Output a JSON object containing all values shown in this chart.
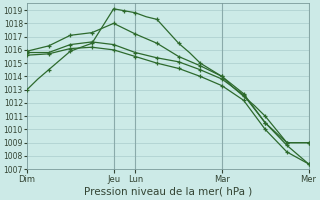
{
  "background_color": "#cceae7",
  "grid_color": "#aacccc",
  "line_color": "#2d6a2d",
  "marker_color": "#2d6a2d",
  "ylim": [
    1007,
    1019.5
  ],
  "yticks": [
    1007,
    1008,
    1009,
    1010,
    1011,
    1012,
    1013,
    1014,
    1015,
    1016,
    1017,
    1018,
    1019
  ],
  "xlabel": "Pression niveau de la mer( hPa )",
  "xlabel_fontsize": 7.5,
  "ytick_fontsize": 5.5,
  "xtick_fontsize": 6.0,
  "xtick_labels": [
    "Dim",
    "Jeu",
    "Lun",
    "Mar",
    "Mer"
  ],
  "xtick_positions": [
    0,
    4,
    5,
    9,
    13
  ],
  "vline_positions": [
    4,
    5,
    9,
    13
  ],
  "series": [
    {
      "x": [
        0,
        0.5,
        1,
        1.5,
        2,
        2.5,
        3,
        3.5,
        4,
        4.5,
        5,
        5.5,
        6,
        6.5,
        7,
        7.5,
        8,
        8.5,
        9,
        9.5,
        10,
        10.5,
        11,
        11.5,
        12,
        12.5,
        13
      ],
      "y": [
        1013.0,
        1013.8,
        1014.5,
        1015.2,
        1015.9,
        1016.2,
        1016.5,
        1017.8,
        1019.1,
        1018.95,
        1018.8,
        1018.5,
        1018.3,
        1017.4,
        1016.5,
        1015.8,
        1015.0,
        1014.5,
        1014.0,
        1013.2,
        1012.5,
        1011.8,
        1011.0,
        1010.0,
        1009.0,
        1009.0,
        1009.0
      ]
    },
    {
      "x": [
        0,
        0.5,
        1,
        1.5,
        2,
        2.5,
        3,
        3.5,
        4,
        4.5,
        5,
        5.5,
        6,
        6.5,
        7,
        7.5,
        8,
        8.5,
        9,
        9.5,
        10,
        10.5,
        11,
        11.5,
        12,
        12.5,
        13
      ],
      "y": [
        1015.9,
        1016.1,
        1016.3,
        1016.7,
        1017.1,
        1017.2,
        1017.3,
        1017.65,
        1018.0,
        1017.6,
        1017.2,
        1016.85,
        1016.5,
        1016.0,
        1015.5,
        1015.15,
        1014.8,
        1014.4,
        1014.0,
        1013.35,
        1012.7,
        1011.6,
        1010.5,
        1009.75,
        1009.0,
        1009.0,
        1009.0
      ]
    },
    {
      "x": [
        0,
        0.5,
        1,
        1.5,
        2,
        2.5,
        3,
        3.5,
        4,
        4.5,
        5,
        5.5,
        6,
        6.5,
        7,
        7.5,
        8,
        8.5,
        9,
        9.5,
        10,
        10.5,
        11,
        11.5,
        12,
        12.5,
        13
      ],
      "y": [
        1015.8,
        1015.8,
        1015.8,
        1016.1,
        1016.4,
        1016.5,
        1016.6,
        1016.5,
        1016.4,
        1016.1,
        1015.8,
        1015.6,
        1015.4,
        1015.25,
        1015.1,
        1014.8,
        1014.5,
        1014.15,
        1013.8,
        1013.2,
        1012.6,
        1011.55,
        1010.5,
        1009.65,
        1008.8,
        1008.1,
        1007.4
      ]
    },
    {
      "x": [
        0,
        0.5,
        1,
        1.5,
        2,
        2.5,
        3,
        3.5,
        4,
        4.5,
        5,
        5.5,
        6,
        6.5,
        7,
        7.5,
        8,
        8.5,
        9,
        9.5,
        10,
        10.5,
        11,
        11.5,
        12,
        12.5,
        13
      ],
      "y": [
        1015.6,
        1015.65,
        1015.7,
        1015.9,
        1016.1,
        1016.15,
        1016.2,
        1016.1,
        1016.0,
        1015.75,
        1015.5,
        1015.25,
        1015.0,
        1014.8,
        1014.6,
        1014.3,
        1014.0,
        1013.65,
        1013.3,
        1012.75,
        1012.2,
        1011.1,
        1010.0,
        1009.15,
        1008.3,
        1007.85,
        1007.4
      ]
    }
  ],
  "marker_x_series": [
    [
      0,
      1,
      2,
      3,
      4,
      4.5,
      5,
      6,
      7,
      8,
      9,
      10,
      11,
      12,
      13
    ],
    [
      0,
      1,
      2,
      3,
      4,
      5,
      6,
      7,
      8,
      9,
      10,
      11,
      12,
      13
    ],
    [
      0,
      1,
      2,
      3,
      4,
      5,
      6,
      7,
      8,
      9,
      10,
      11,
      12,
      13
    ],
    [
      0,
      1,
      2,
      3,
      4,
      5,
      6,
      7,
      8,
      9,
      10,
      11,
      12,
      13
    ]
  ],
  "marker_y_series": [
    [
      1013.0,
      1014.5,
      1015.9,
      1016.5,
      1019.1,
      1018.95,
      1018.8,
      1018.3,
      1016.5,
      1015.0,
      1014.0,
      1012.5,
      1011.0,
      1009.0,
      1009.0
    ],
    [
      1015.9,
      1016.3,
      1017.1,
      1017.3,
      1018.0,
      1017.2,
      1016.5,
      1015.5,
      1014.8,
      1014.0,
      1012.7,
      1010.5,
      1009.0,
      1009.0
    ],
    [
      1015.8,
      1015.8,
      1016.4,
      1016.6,
      1016.4,
      1015.8,
      1015.4,
      1015.1,
      1014.5,
      1013.8,
      1012.6,
      1010.5,
      1008.8,
      1007.4
    ],
    [
      1015.6,
      1015.7,
      1016.1,
      1016.2,
      1016.0,
      1015.5,
      1015.0,
      1014.6,
      1014.0,
      1013.3,
      1012.2,
      1010.0,
      1008.3,
      1007.4
    ]
  ]
}
